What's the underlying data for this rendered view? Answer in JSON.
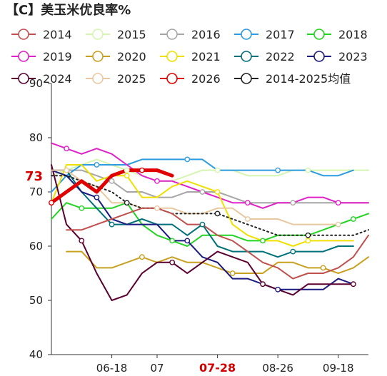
{
  "chart_data": {
    "type": "line",
    "title": "【C】美玉米优良率%",
    "ylim": [
      40,
      90
    ],
    "yticks": [
      40,
      50,
      60,
      70,
      80,
      90
    ],
    "xrange": [
      0,
      21
    ],
    "xticks": [
      {
        "x": 4,
        "label": "06-18",
        "highlight": false
      },
      {
        "x": 7,
        "label": "07",
        "highlight": false
      },
      {
        "x": 11,
        "label": "07-28",
        "highlight": true
      },
      {
        "x": 15,
        "label": "08-26",
        "highlight": false
      },
      {
        "x": 19,
        "label": "09-18",
        "highlight": false
      }
    ],
    "callout": {
      "text": "73",
      "x": 0,
      "y": 73,
      "color": "#d40000"
    },
    "legend_position": "top",
    "series": [
      {
        "name": "2014",
        "color": "#c0504d",
        "values": [
          null,
          null,
          null,
          null,
          null,
          null,
          null,
          null,
          null,
          null,
          null,
          null,
          null,
          null,
          null,
          null,
          null,
          null,
          null,
          null,
          null,
          null
        ]
      },
      {
        "name": "2015",
        "color": "#d5f5b0",
        "values": [
          73,
          74,
          75,
          76,
          75,
          74,
          73,
          72,
          72,
          73,
          74,
          74,
          74,
          73,
          73,
          73,
          74,
          74,
          74,
          74,
          74,
          74
        ]
      },
      {
        "name": "2016",
        "color": "#a6a6a6",
        "values": [
          74,
          74,
          74,
          73,
          72,
          70,
          70,
          69,
          69,
          70,
          70,
          70,
          69,
          68,
          68,
          68,
          68,
          68,
          68,
          68,
          68,
          68
        ]
      },
      {
        "name": "2017",
        "color": "#2c9be0",
        "values": [
          70,
          73,
          75,
          75,
          75,
          75,
          76,
          76,
          76,
          76,
          76,
          74,
          74,
          74,
          74,
          74,
          74,
          74,
          73,
          73,
          74,
          null
        ]
      },
      {
        "name": "2018",
        "color": "#22d422",
        "values": [
          65,
          68,
          67,
          67,
          67,
          68,
          64,
          62,
          61,
          60,
          62,
          62,
          62,
          61,
          61,
          62,
          62,
          62,
          63,
          64,
          65,
          66
        ]
      },
      {
        "name": "2019",
        "color": "#e020c8",
        "values": [
          79,
          78,
          77,
          78,
          77,
          75,
          73,
          72,
          72,
          71,
          70,
          69,
          68,
          68,
          67,
          68,
          68,
          69,
          69,
          68,
          68,
          68
        ]
      },
      {
        "name": "2020",
        "color": "#c8a020",
        "values": [
          null,
          59,
          59,
          56,
          56,
          57,
          58,
          57,
          58,
          57,
          57,
          56,
          55,
          55,
          55,
          57,
          57,
          56,
          56,
          55,
          56,
          58
        ]
      },
      {
        "name": "2021",
        "color": "#f0e000",
        "values": [
          68,
          75,
          75,
          72,
          73,
          73,
          69,
          69,
          71,
          72,
          71,
          70,
          64,
          62,
          61,
          61,
          60,
          61,
          61,
          61,
          61,
          null
        ]
      },
      {
        "name": "2022",
        "color": "#00707a",
        "values": [
          74,
          74,
          70,
          67,
          64,
          64,
          65,
          64,
          64,
          62,
          64,
          60,
          59,
          59,
          59,
          58,
          59,
          59,
          59,
          60,
          60,
          null
        ]
      },
      {
        "name": "2023",
        "color": "#1a1a80",
        "values": [
          74,
          73,
          70,
          69,
          65,
          64,
          64,
          64,
          61,
          61,
          58,
          57,
          54,
          54,
          53,
          52,
          52,
          52,
          52,
          54,
          53,
          null
        ]
      },
      {
        "name": "2024",
        "color": "#5a0030",
        "values": [
          75,
          64,
          61,
          55,
          50,
          51,
          55,
          57,
          57,
          55,
          57,
          59,
          58,
          57,
          53,
          52,
          51,
          53,
          53,
          53,
          53,
          null
        ]
      },
      {
        "name": "2025",
        "color": "#e8c8a0",
        "values": [
          74,
          74,
          72,
          71,
          68,
          68,
          67,
          67,
          67,
          66,
          66,
          67,
          67,
          65,
          65,
          65,
          64,
          64,
          64,
          64,
          null,
          null
        ]
      },
      {
        "name": "2026",
        "color": "#e00000",
        "values": [
          68,
          70,
          72,
          70,
          73,
          74,
          74,
          74,
          73,
          null,
          null,
          null,
          null,
          null,
          null,
          null,
          null,
          null,
          null,
          null,
          null,
          null
        ]
      },
      {
        "name": "2014-2025均值",
        "color": "#222222",
        "values": [
          73,
          73,
          72,
          71,
          70,
          68,
          67,
          67,
          66,
          66,
          66,
          66,
          65,
          64,
          63,
          62,
          62,
          62,
          62,
          62,
          62,
          63
        ]
      }
    ],
    "extra_lines": [
      {
        "series": "2014",
        "points": [
          [
            1,
            63
          ],
          [
            2,
            63
          ],
          [
            3,
            64
          ],
          [
            4,
            65
          ],
          [
            5,
            66
          ],
          [
            6,
            67
          ],
          [
            7,
            67
          ],
          [
            8,
            66
          ],
          [
            9,
            64
          ],
          [
            10,
            64
          ],
          [
            11,
            62
          ],
          [
            12,
            61
          ],
          [
            13,
            59
          ],
          [
            14,
            57
          ],
          [
            15,
            56
          ],
          [
            16,
            54
          ],
          [
            17,
            55
          ],
          [
            18,
            55
          ],
          [
            19,
            56
          ],
          [
            20,
            58
          ],
          [
            21,
            62
          ]
        ]
      }
    ]
  }
}
